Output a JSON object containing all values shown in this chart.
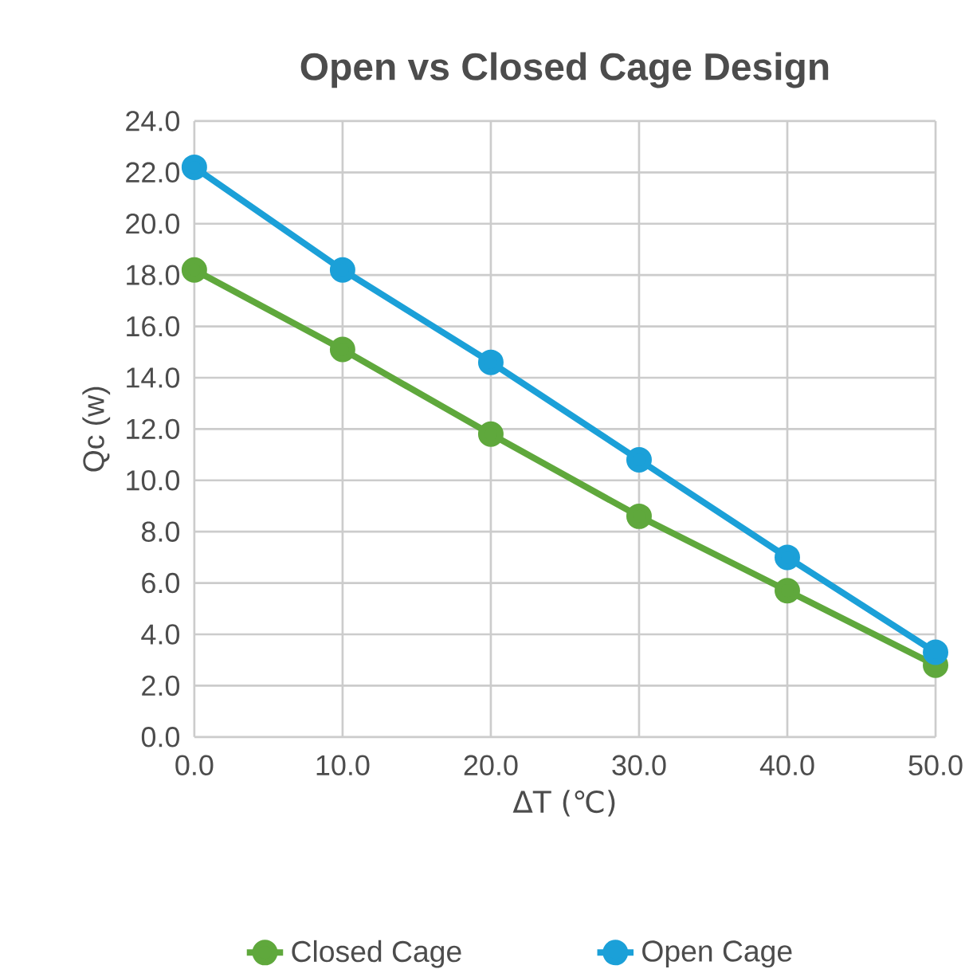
{
  "chart_data": {
    "type": "line",
    "title": "Open vs Closed Cage Design",
    "xlabel": "ΔT (℃)",
    "ylabel": "Qc (w)",
    "x": [
      0,
      10,
      20,
      30,
      40,
      50
    ],
    "series": [
      {
        "name": "Closed Cage",
        "color": "#5fa83c",
        "values": [
          18.2,
          15.1,
          11.8,
          8.6,
          5.7,
          2.8
        ]
      },
      {
        "name": "Open Cage",
        "color": "#1ba0d8",
        "values": [
          22.2,
          18.2,
          14.6,
          10.8,
          7.0,
          3.3
        ]
      }
    ],
    "xlim": [
      0,
      50
    ],
    "xticks": [
      {
        "value": 0,
        "label": "0.0"
      },
      {
        "value": 10,
        "label": "10.0"
      },
      {
        "value": 20,
        "label": "20.0"
      },
      {
        "value": 30,
        "label": "30.0"
      },
      {
        "value": 40,
        "label": "40.0"
      },
      {
        "value": 50,
        "label": "50.0"
      }
    ],
    "ylim": [
      0,
      24
    ],
    "yticks": [
      {
        "value": 0,
        "label": "0.0"
      },
      {
        "value": 2,
        "label": "2.0"
      },
      {
        "value": 4,
        "label": "4.0"
      },
      {
        "value": 6,
        "label": "6.0"
      },
      {
        "value": 8,
        "label": "8.0"
      },
      {
        "value": 10,
        "label": "10.0"
      },
      {
        "value": 12,
        "label": "12.0"
      },
      {
        "value": 14,
        "label": "14.0"
      },
      {
        "value": 16,
        "label": "16.0"
      },
      {
        "value": 18,
        "label": "18.0"
      },
      {
        "value": 20,
        "label": "20.0"
      },
      {
        "value": 22,
        "label": "22.0"
      },
      {
        "value": 24,
        "label": "24.0"
      }
    ],
    "grid": true,
    "legend": "bottom",
    "marker": "circle",
    "line_style": "solid"
  }
}
